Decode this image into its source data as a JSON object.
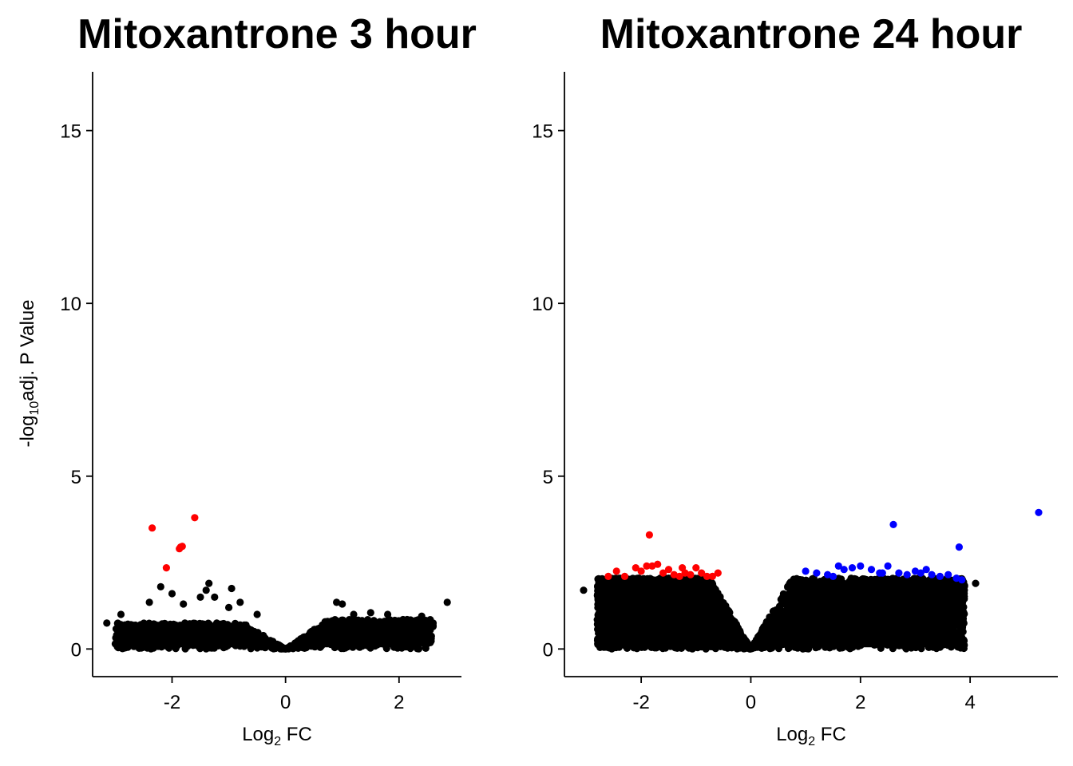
{
  "colors": {
    "down": "#ff0000",
    "up": "#0000ff",
    "ns": "#000000"
  },
  "chart_data": [
    {
      "type": "scatter",
      "title": "Mitoxantrone 3 hour",
      "xlabel": {
        "base": "Log",
        "sub": "2",
        "rest": " FC"
      },
      "ylabel": {
        "pre": "-log",
        "sub": "10",
        "rest": "adj. P Value"
      },
      "xlim": [
        -3.4,
        3.1
      ],
      "ylim": [
        -0.8,
        16.7
      ],
      "xticks": [
        -2,
        0,
        2
      ],
      "yticks": [
        0,
        5,
        10,
        15
      ],
      "cloud": {
        "neg_extent": 3.0,
        "pos_extent": 2.6,
        "neg_height": 0.75,
        "pos_height": 0.85,
        "count": 1300
      },
      "significant_down": [
        [
          -2.35,
          3.5
        ],
        [
          -1.6,
          3.8
        ],
        [
          -1.85,
          2.95
        ],
        [
          -1.82,
          2.97
        ],
        [
          -1.87,
          2.9
        ],
        [
          -2.1,
          2.35
        ]
      ],
      "significant_up": [],
      "outliers": [
        [
          -3.15,
          0.75
        ],
        [
          -3.0,
          0.15
        ],
        [
          -2.9,
          1.0
        ],
        [
          -2.4,
          1.35
        ],
        [
          -2.2,
          1.8
        ],
        [
          -2.0,
          1.6
        ],
        [
          -1.8,
          1.3
        ],
        [
          -1.5,
          1.5
        ],
        [
          -1.4,
          1.7
        ],
        [
          -1.35,
          1.9
        ],
        [
          -1.25,
          1.5
        ],
        [
          -1.0,
          1.2
        ],
        [
          -0.95,
          1.75
        ],
        [
          -0.8,
          1.35
        ],
        [
          -0.5,
          1.0
        ],
        [
          0.9,
          1.35
        ],
        [
          1.0,
          1.3
        ],
        [
          1.2,
          1.0
        ],
        [
          1.5,
          1.05
        ],
        [
          1.8,
          1.0
        ],
        [
          2.4,
          0.95
        ],
        [
          2.6,
          0.75
        ],
        [
          2.85,
          1.35
        ],
        [
          2.55,
          0.55
        ]
      ]
    },
    {
      "type": "scatter",
      "title": "Mitoxantrone 24 hour",
      "xlabel": {
        "base": "Log",
        "sub": "2",
        "rest": " FC"
      },
      "ylabel": null,
      "xlim": [
        -3.4,
        5.6
      ],
      "ylim": [
        -0.8,
        16.7
      ],
      "xticks": [
        -2,
        0,
        2,
        4
      ],
      "yticks": [
        0,
        5,
        10,
        15
      ],
      "cloud": {
        "neg_extent": 2.8,
        "pos_extent": 3.9,
        "neg_height": 2.05,
        "pos_height": 2.05,
        "count": 5200
      },
      "significant_down": [
        [
          -1.85,
          3.3
        ],
        [
          -2.45,
          2.25
        ],
        [
          -2.3,
          2.1
        ],
        [
          -2.1,
          2.35
        ],
        [
          -2.0,
          2.25
        ],
        [
          -1.9,
          2.4
        ],
        [
          -1.8,
          2.4
        ],
        [
          -1.7,
          2.45
        ],
        [
          -1.6,
          2.2
        ],
        [
          -1.5,
          2.3
        ],
        [
          -1.4,
          2.15
        ],
        [
          -1.3,
          2.1
        ],
        [
          -1.2,
          2.2
        ],
        [
          -1.1,
          2.15
        ],
        [
          -1.0,
          2.35
        ],
        [
          -0.9,
          2.2
        ],
        [
          -0.8,
          2.1
        ],
        [
          -0.6,
          2.2
        ],
        [
          -2.6,
          2.1
        ],
        [
          -1.25,
          2.35
        ],
        [
          -0.7,
          2.1
        ]
      ],
      "significant_up": [
        [
          5.25,
          3.95
        ],
        [
          2.6,
          3.6
        ],
        [
          3.8,
          2.95
        ],
        [
          1.0,
          2.25
        ],
        [
          1.2,
          2.2
        ],
        [
          1.4,
          2.15
        ],
        [
          1.6,
          2.4
        ],
        [
          1.7,
          2.3
        ],
        [
          1.85,
          2.35
        ],
        [
          2.0,
          2.4
        ],
        [
          2.2,
          2.3
        ],
        [
          2.35,
          2.2
        ],
        [
          2.5,
          2.4
        ],
        [
          2.7,
          2.2
        ],
        [
          2.85,
          2.15
        ],
        [
          3.0,
          2.25
        ],
        [
          3.1,
          2.2
        ],
        [
          3.3,
          2.15
        ],
        [
          3.45,
          2.1
        ],
        [
          3.6,
          2.15
        ],
        [
          3.75,
          2.05
        ],
        [
          3.85,
          2.0
        ],
        [
          1.5,
          2.1
        ],
        [
          2.4,
          2.2
        ],
        [
          3.2,
          2.3
        ]
      ],
      "outliers": [
        [
          -3.05,
          1.7
        ],
        [
          -2.7,
          1.95
        ],
        [
          -2.5,
          1.8
        ],
        [
          -2.2,
          1.3
        ],
        [
          -1.6,
          0.85
        ],
        [
          4.1,
          1.9
        ],
        [
          3.8,
          1.75
        ],
        [
          3.7,
          1.55
        ],
        [
          3.3,
          1.25
        ],
        [
          3.0,
          1.0
        ],
        [
          2.8,
          0.75
        ],
        [
          2.5,
          1.05
        ]
      ]
    }
  ]
}
